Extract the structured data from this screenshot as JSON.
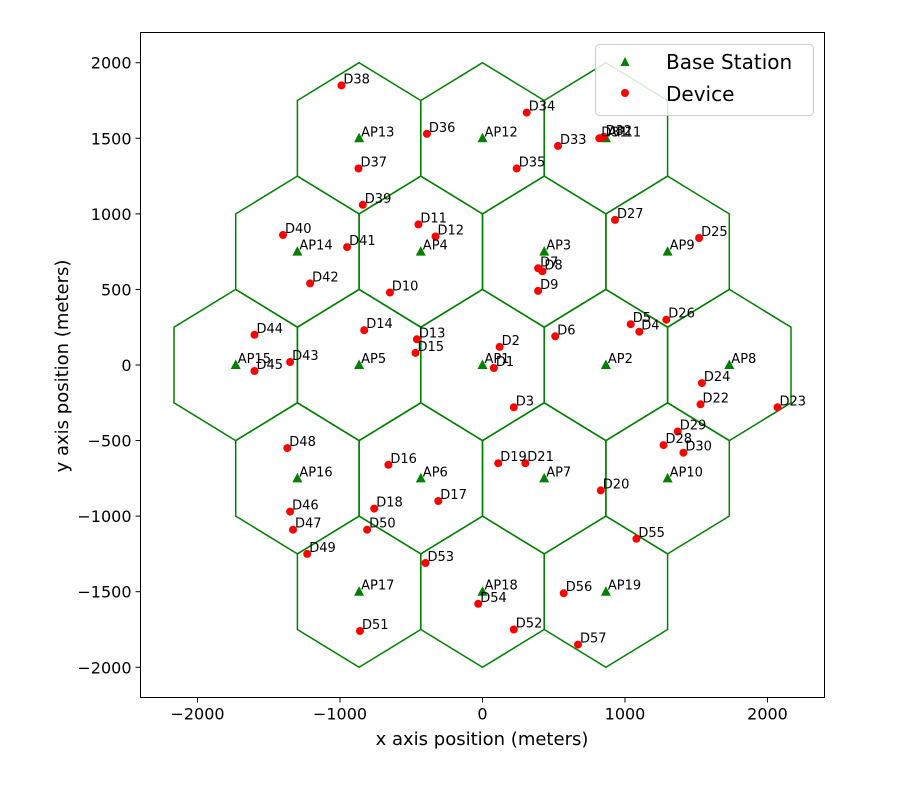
{
  "chart_data": {
    "type": "scatter",
    "xlabel": "x axis position (meters)",
    "ylabel": "y axis position (meters)",
    "xlim": [
      -2400,
      2400
    ],
    "ylim": [
      -2200,
      2200
    ],
    "xticks": [
      -2000,
      -1000,
      0,
      1000,
      2000
    ],
    "yticks": [
      -2000,
      -1500,
      -1000,
      -500,
      0,
      500,
      1000,
      1500,
      2000
    ],
    "grid": false,
    "legend_position": "top-right",
    "cell_outline_color": "#008000",
    "legend": [
      {
        "label": "Base Station",
        "marker": "triangle",
        "color": "#008000"
      },
      {
        "label": "Device",
        "marker": "circle",
        "color": "#ff0000"
      }
    ],
    "series": [
      {
        "marker": "triangle",
        "color": "#008000",
        "points": [
          {
            "label": "AP1",
            "x": 0,
            "y": 0
          },
          {
            "label": "AP2",
            "x": 866,
            "y": 0
          },
          {
            "label": "AP3",
            "x": 433,
            "y": 750
          },
          {
            "label": "AP4",
            "x": -433,
            "y": 750
          },
          {
            "label": "AP5",
            "x": -866,
            "y": 0
          },
          {
            "label": "AP6",
            "x": -433,
            "y": -750
          },
          {
            "label": "AP7",
            "x": 433,
            "y": -750
          },
          {
            "label": "AP8",
            "x": 1732,
            "y": 0
          },
          {
            "label": "AP9",
            "x": 1299,
            "y": 750
          },
          {
            "label": "AP10",
            "x": 1299,
            "y": -750
          },
          {
            "label": "AP11",
            "x": 866,
            "y": 1500
          },
          {
            "label": "AP12",
            "x": 0,
            "y": 1500
          },
          {
            "label": "AP13",
            "x": -866,
            "y": 1500
          },
          {
            "label": "AP14",
            "x": -1299,
            "y": 750
          },
          {
            "label": "AP15",
            "x": -1732,
            "y": 0
          },
          {
            "label": "AP16",
            "x": -1299,
            "y": -750
          },
          {
            "label": "AP17",
            "x": -866,
            "y": -1500
          },
          {
            "label": "AP18",
            "x": 0,
            "y": -1500
          },
          {
            "label": "AP19",
            "x": 866,
            "y": -1500
          }
        ]
      },
      {
        "marker": "circle",
        "color": "#ff0000",
        "points": [
          {
            "label": "D1",
            "x": 80,
            "y": -20
          },
          {
            "label": "D2",
            "x": 120,
            "y": 120
          },
          {
            "label": "D3",
            "x": 220,
            "y": -280
          },
          {
            "label": "D4",
            "x": 1100,
            "y": 220
          },
          {
            "label": "D5",
            "x": 1040,
            "y": 270
          },
          {
            "label": "D6",
            "x": 510,
            "y": 190
          },
          {
            "label": "D7",
            "x": 390,
            "y": 640
          },
          {
            "label": "D8",
            "x": 420,
            "y": 620
          },
          {
            "label": "D9",
            "x": 390,
            "y": 490
          },
          {
            "label": "D10",
            "x": -650,
            "y": 480
          },
          {
            "label": "D11",
            "x": -450,
            "y": 930
          },
          {
            "label": "D12",
            "x": -330,
            "y": 850
          },
          {
            "label": "D13",
            "x": -460,
            "y": 170
          },
          {
            "label": "D14",
            "x": -830,
            "y": 230
          },
          {
            "label": "D15",
            "x": -470,
            "y": 80
          },
          {
            "label": "D16",
            "x": -660,
            "y": -660
          },
          {
            "label": "D17",
            "x": -310,
            "y": -900
          },
          {
            "label": "D18",
            "x": -760,
            "y": -950
          },
          {
            "label": "D19",
            "x": 110,
            "y": -650
          },
          {
            "label": "D20",
            "x": 830,
            "y": -830
          },
          {
            "label": "D21",
            "x": 300,
            "y": -650
          },
          {
            "label": "D22",
            "x": 1530,
            "y": -260
          },
          {
            "label": "D23",
            "x": 2070,
            "y": -280
          },
          {
            "label": "D24",
            "x": 1540,
            "y": -120
          },
          {
            "label": "D25",
            "x": 1520,
            "y": 840
          },
          {
            "label": "D26",
            "x": 1290,
            "y": 300
          },
          {
            "label": "D27",
            "x": 930,
            "y": 960
          },
          {
            "label": "D28",
            "x": 1270,
            "y": -530
          },
          {
            "label": "D29",
            "x": 1370,
            "y": -440
          },
          {
            "label": "D30",
            "x": 1410,
            "y": -580
          },
          {
            "label": "D31",
            "x": 820,
            "y": 1500
          },
          {
            "label": "D32",
            "x": 850,
            "y": 1510
          },
          {
            "label": "D33",
            "x": 530,
            "y": 1450
          },
          {
            "label": "D34",
            "x": 310,
            "y": 1670
          },
          {
            "label": "D35",
            "x": 240,
            "y": 1300
          },
          {
            "label": "D36",
            "x": -390,
            "y": 1530
          },
          {
            "label": "D37",
            "x": -870,
            "y": 1300
          },
          {
            "label": "D38",
            "x": -990,
            "y": 1850
          },
          {
            "label": "D39",
            "x": -840,
            "y": 1060
          },
          {
            "label": "D40",
            "x": -1400,
            "y": 860
          },
          {
            "label": "D41",
            "x": -950,
            "y": 780
          },
          {
            "label": "D42",
            "x": -1210,
            "y": 540
          },
          {
            "label": "D43",
            "x": -1350,
            "y": 20
          },
          {
            "label": "D44",
            "x": -1600,
            "y": 200
          },
          {
            "label": "D45",
            "x": -1600,
            "y": -40
          },
          {
            "label": "D46",
            "x": -1350,
            "y": -970
          },
          {
            "label": "D47",
            "x": -1330,
            "y": -1090
          },
          {
            "label": "D48",
            "x": -1370,
            "y": -550
          },
          {
            "label": "D49",
            "x": -1230,
            "y": -1250
          },
          {
            "label": "D50",
            "x": -810,
            "y": -1090
          },
          {
            "label": "D51",
            "x": -860,
            "y": -1760
          },
          {
            "label": "D52",
            "x": 220,
            "y": -1750
          },
          {
            "label": "D53",
            "x": -400,
            "y": -1310
          },
          {
            "label": "D54",
            "x": -30,
            "y": -1580
          },
          {
            "label": "D55",
            "x": 1080,
            "y": -1150
          },
          {
            "label": "D56",
            "x": 570,
            "y": -1510
          },
          {
            "label": "D57",
            "x": 670,
            "y": -1850
          }
        ]
      }
    ]
  }
}
